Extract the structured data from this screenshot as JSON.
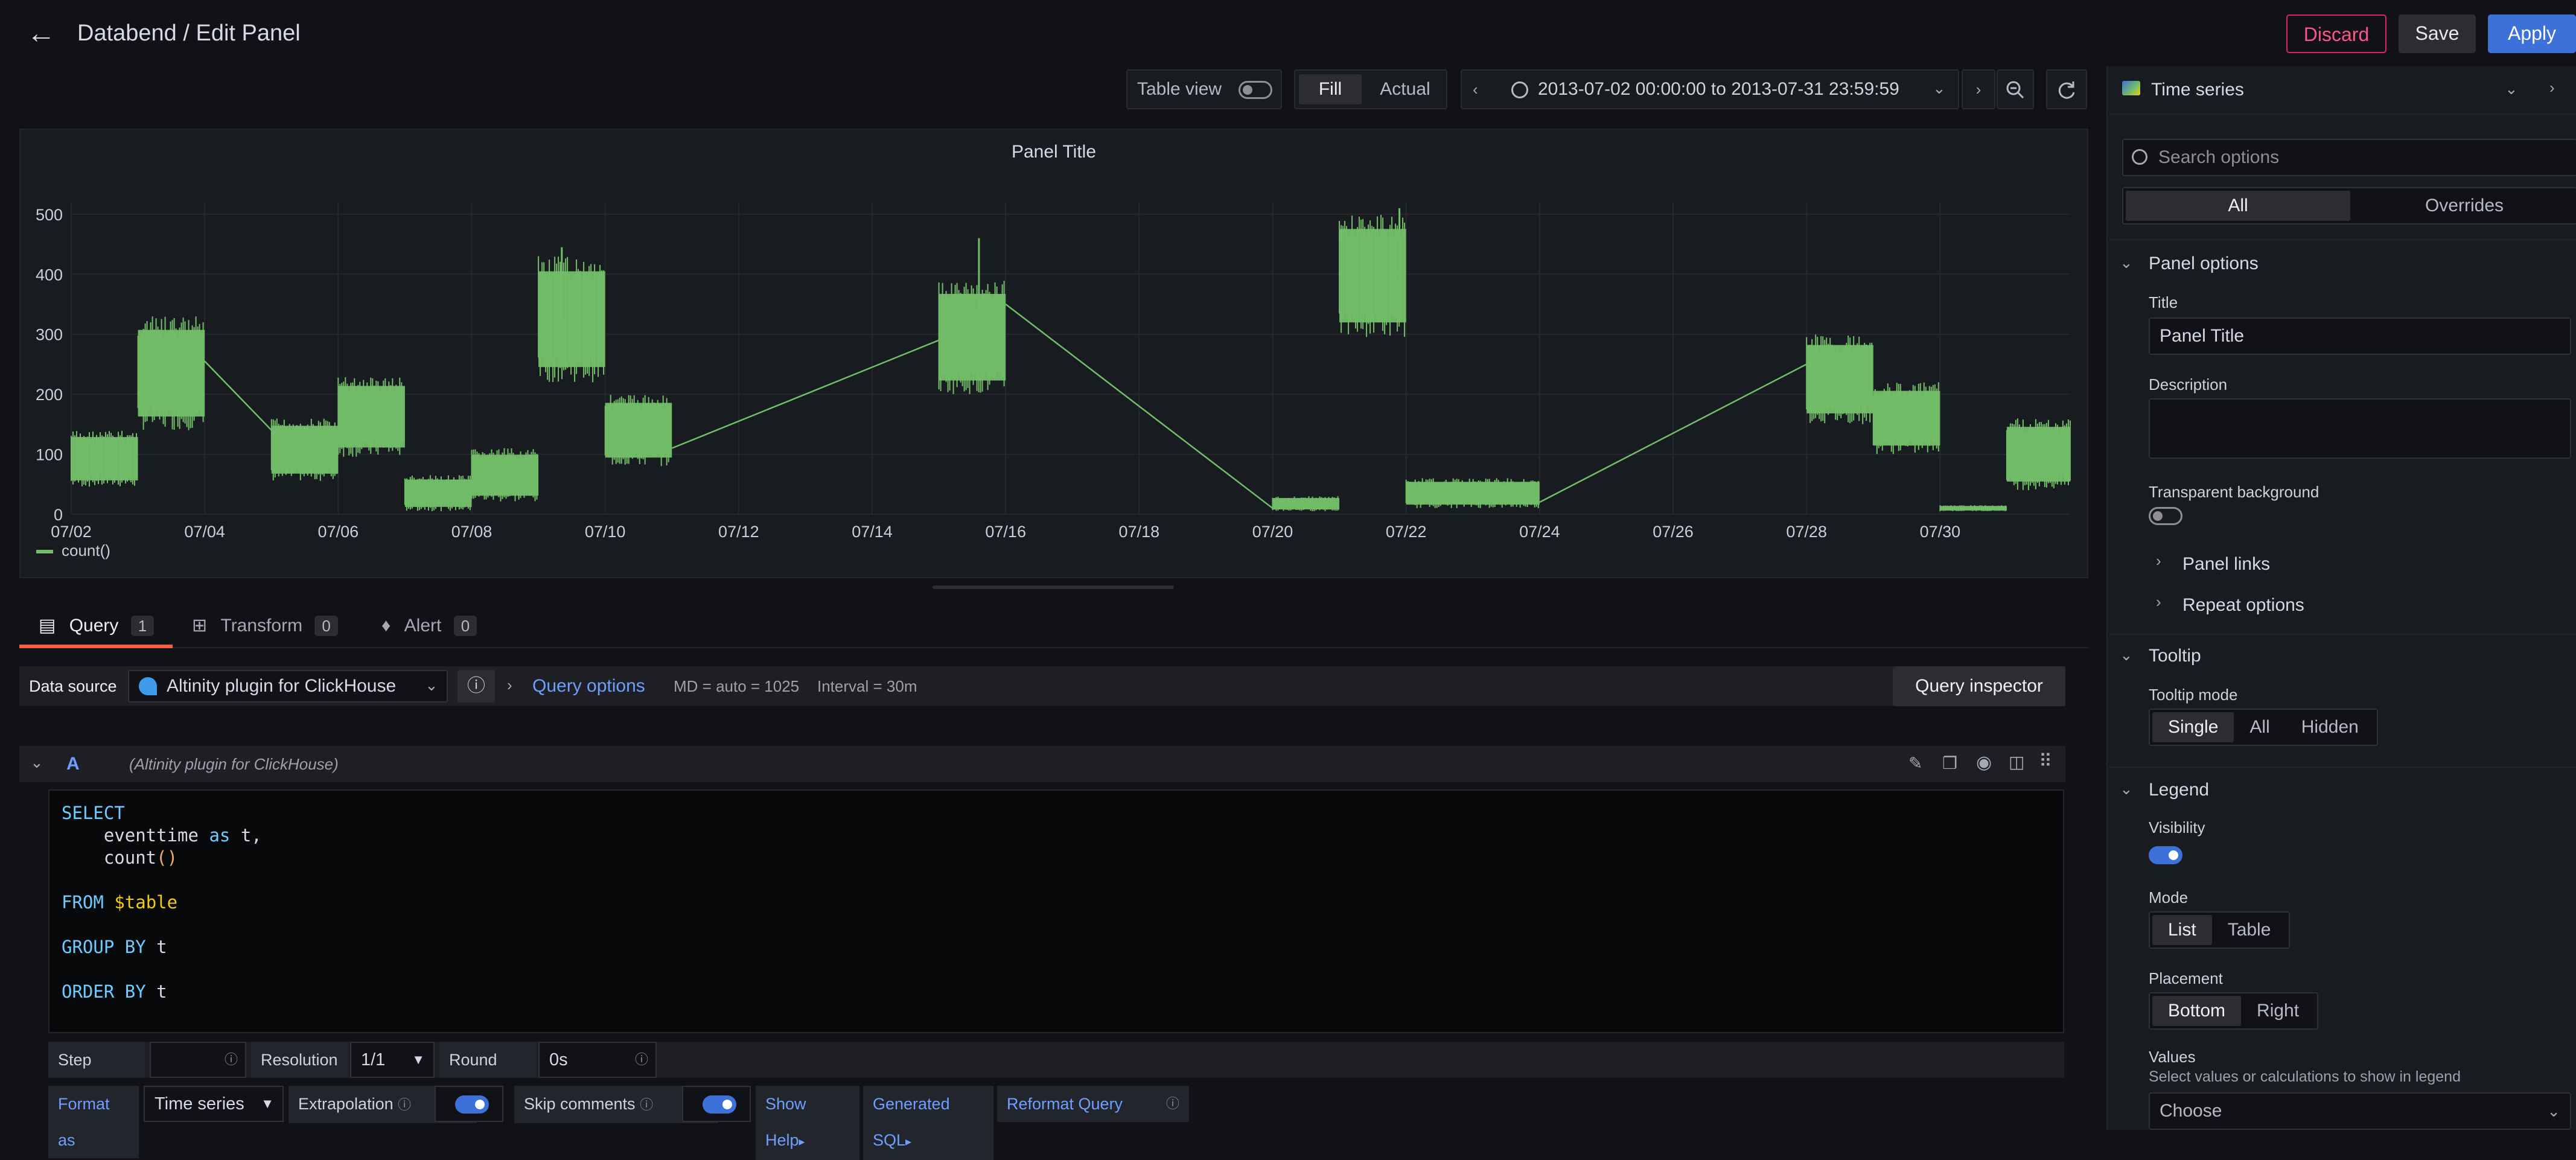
{
  "header": {
    "breadcrumb": "Databend / Edit Panel",
    "discard": "Discard",
    "save": "Save",
    "apply": "Apply"
  },
  "toolbar": {
    "table_view": "Table view",
    "fill": "Fill",
    "actual": "Actual",
    "time_range": "2013-07-02 00:00:00 to 2013-07-31 23:59:59"
  },
  "panel": {
    "title": "Panel Title"
  },
  "chart_data": {
    "type": "line",
    "title": "Panel Title",
    "color": "#73bf69",
    "ylim": [
      0,
      520
    ],
    "yticks": [
      0,
      100,
      200,
      300,
      400,
      500
    ],
    "xticks": [
      "07/02",
      "07/04",
      "07/06",
      "07/08",
      "07/10",
      "07/12",
      "07/14",
      "07/16",
      "07/18",
      "07/20",
      "07/22",
      "07/24",
      "07/26",
      "07/28",
      "07/30"
    ],
    "xrange_days": [
      2,
      31.95
    ],
    "segments": [
      {
        "start": 2.0,
        "end": 3.0,
        "low": 45,
        "high": 140
      },
      {
        "start": 3.0,
        "end": 4.0,
        "low": 140,
        "high": 330
      },
      {
        "start": 5.0,
        "end": 6.0,
        "low": 55,
        "high": 160
      },
      {
        "start": 6.0,
        "end": 7.0,
        "low": 95,
        "high": 230
      },
      {
        "start": 7.0,
        "end": 8.0,
        "low": 5,
        "high": 65
      },
      {
        "start": 8.0,
        "end": 9.0,
        "low": 20,
        "high": 110
      },
      {
        "start": 9.0,
        "end": 10.0,
        "low": 220,
        "high": 430
      },
      {
        "start": 10.0,
        "end": 11.0,
        "low": 80,
        "high": 200
      },
      {
        "start": 15.0,
        "end": 16.0,
        "low": 200,
        "high": 390
      },
      {
        "start": 20.0,
        "end": 21.0,
        "low": 5,
        "high": 30
      },
      {
        "start": 21.0,
        "end": 22.0,
        "low": 295,
        "high": 500
      },
      {
        "start": 22.0,
        "end": 24.0,
        "low": 10,
        "high": 60
      },
      {
        "start": 28.0,
        "end": 29.0,
        "low": 150,
        "high": 300
      },
      {
        "start": 29.0,
        "end": 30.0,
        "low": 100,
        "high": 220
      },
      {
        "start": 30.0,
        "end": 31.0,
        "low": 5,
        "high": 15
      },
      {
        "start": 31.0,
        "end": 31.95,
        "low": 40,
        "high": 160
      }
    ],
    "spikes": [
      {
        "x": 15.6,
        "y": 460
      },
      {
        "x": 9.35,
        "y": 445
      },
      {
        "x": 21.9,
        "y": 510
      }
    ],
    "gap_lines": [
      {
        "x1": 4.0,
        "y1": 255,
        "x2": 5.0,
        "y2": 140
      },
      {
        "x1": 11.0,
        "y1": 110,
        "x2": 15.0,
        "y2": 290
      },
      {
        "x1": 16.0,
        "y1": 350,
        "x2": 20.0,
        "y2": 10
      },
      {
        "x1": 24.0,
        "y1": 20,
        "x2": 28.0,
        "y2": 250
      }
    ],
    "legend": [
      "count()"
    ],
    "legend_placement": "bottom-left",
    "grid": true
  },
  "query_tabs": [
    {
      "label": "Query",
      "count": "1"
    },
    {
      "label": "Transform",
      "count": "0"
    },
    {
      "label": "Alert",
      "count": "0"
    }
  ],
  "datasource": {
    "label": "Data source",
    "name": "Altinity plugin for ClickHouse",
    "query_options": "Query options",
    "md": "MD = auto = 1025",
    "interval": "Interval = 30m",
    "inspector": "Query inspector"
  },
  "query_a": {
    "ref": "A",
    "source": "(Altinity plugin for ClickHouse)",
    "code": {
      "l1": "SELECT",
      "l2a": "    eventtime ",
      "l2b": "as",
      "l2c": " t,",
      "l3a": "    count",
      "l3b": "()",
      "l5a": "FROM ",
      "l5b": "$table",
      "l7a": "GROUP BY",
      "l7b": " t",
      "l9a": "ORDER BY",
      "l9b": " t"
    }
  },
  "options": {
    "step": "Step",
    "resolution": "Resolution",
    "resolution_value": "1/1",
    "round": "Round",
    "round_value": "0s",
    "format_as": "Format as",
    "format_value": "Time series",
    "extrapolation": "Extrapolation",
    "skip_comments": "Skip comments",
    "show_help": "Show Help",
    "generated_sql": "Generated SQL",
    "reformat": "Reformat Query"
  },
  "sidebar": {
    "viz": "Time series",
    "search_placeholder": "Search options",
    "tab_all": "All",
    "tab_overrides": "Overrides",
    "panel_options": "Panel options",
    "title_label": "Title",
    "title_value": "Panel Title",
    "description_label": "Description",
    "transparent": "Transparent background",
    "panel_links": "Panel links",
    "repeat_options": "Repeat options",
    "tooltip": "Tooltip",
    "tooltip_mode": "Tooltip mode",
    "tooltip_modes": [
      "Single",
      "All",
      "Hidden"
    ],
    "legend": "Legend",
    "visibility": "Visibility",
    "mode": "Mode",
    "modes": [
      "List",
      "Table"
    ],
    "placement": "Placement",
    "placements": [
      "Bottom",
      "Right"
    ],
    "values": "Values",
    "values_desc": "Select values or calculations to show in legend",
    "choose": "Choose"
  }
}
